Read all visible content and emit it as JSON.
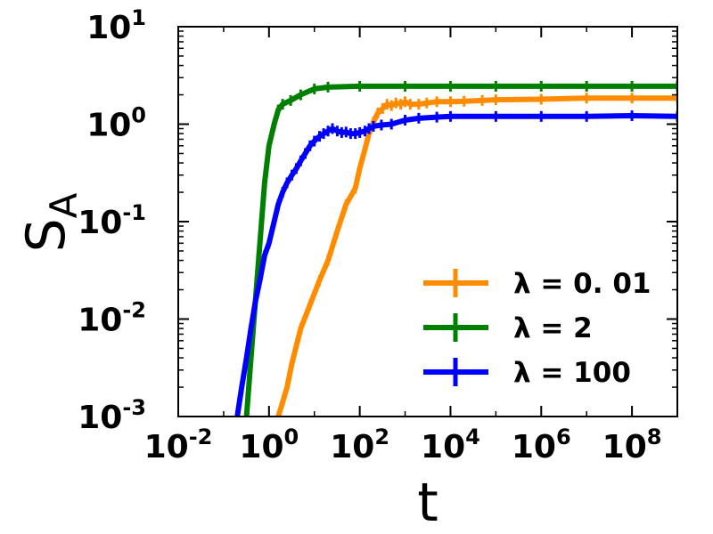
{
  "chart_data": {
    "type": "line",
    "xscale": "log",
    "yscale": "log",
    "xlim": [
      0.01,
      1000000000
    ],
    "ylim": [
      0.001,
      10
    ],
    "xlabel": "t",
    "ylabel": "S",
    "ylabel_subscript": "A",
    "legend_position": "lower right",
    "grid": false,
    "x_ticks": [
      {
        "value": 0.01,
        "base": "10",
        "exp": "-2"
      },
      {
        "value": 1,
        "base": "10",
        "exp": "0"
      },
      {
        "value": 100,
        "base": "10",
        "exp": "2"
      },
      {
        "value": 10000,
        "base": "10",
        "exp": "4"
      },
      {
        "value": 1000000,
        "base": "10",
        "exp": "6"
      },
      {
        "value": 100000000,
        "base": "10",
        "exp": "8"
      }
    ],
    "y_ticks": [
      {
        "value": 0.001,
        "base": "10",
        "exp": "-3"
      },
      {
        "value": 0.01,
        "base": "10",
        "exp": "-2"
      },
      {
        "value": 0.1,
        "base": "10",
        "exp": "-1"
      },
      {
        "value": 1,
        "base": "10",
        "exp": "0"
      },
      {
        "value": 10,
        "base": "10",
        "exp": "1"
      }
    ],
    "series": [
      {
        "name": "λ = 0. 01",
        "color": "#ff8c00",
        "x": [
          1.6,
          2.0,
          2.5,
          3.2,
          5,
          8,
          13,
          20,
          32,
          50,
          80,
          100,
          130,
          160,
          200,
          250,
          320,
          400,
          500,
          630,
          800,
          1000,
          1300,
          2000,
          3000,
          5000,
          10000,
          20000,
          50000,
          100000,
          1000000,
          10000000,
          100000000,
          1000000000
        ],
        "y": [
          0.001,
          0.0014,
          0.002,
          0.0035,
          0.008,
          0.014,
          0.025,
          0.04,
          0.08,
          0.15,
          0.22,
          0.35,
          0.55,
          0.8,
          1.05,
          1.3,
          1.45,
          1.6,
          1.55,
          1.65,
          1.6,
          1.7,
          1.6,
          1.6,
          1.65,
          1.7,
          1.7,
          1.72,
          1.75,
          1.78,
          1.8,
          1.85,
          1.85,
          1.85
        ]
      },
      {
        "name": "λ = 2",
        "color": "#008000",
        "x": [
          0.32,
          0.4,
          0.5,
          0.63,
          0.8,
          1.0,
          1.3,
          1.6,
          2.0,
          3.0,
          5.0,
          10,
          20,
          100,
          1000,
          10000,
          100000,
          1000000,
          10000000,
          100000000,
          1000000000
        ],
        "y": [
          0.001,
          0.004,
          0.015,
          0.06,
          0.25,
          0.6,
          1.0,
          1.4,
          1.6,
          1.75,
          2.0,
          2.3,
          2.4,
          2.45,
          2.45,
          2.45,
          2.45,
          2.45,
          2.45,
          2.45,
          2.45
        ]
      },
      {
        "name": "λ = 100",
        "color": "#0000ff",
        "x": [
          0.2,
          0.25,
          0.32,
          0.4,
          0.5,
          0.63,
          0.8,
          1.0,
          1.3,
          1.6,
          2.0,
          2.5,
          3.2,
          4,
          5,
          6.3,
          8,
          10,
          13,
          16,
          20,
          25,
          32,
          40,
          50,
          63,
          80,
          100,
          130,
          160,
          200,
          300,
          500,
          1000,
          2000,
          5000,
          10000,
          100000,
          1000000,
          10000000,
          100000000,
          1000000000
        ],
        "y": [
          0.001,
          0.002,
          0.004,
          0.008,
          0.015,
          0.025,
          0.045,
          0.06,
          0.1,
          0.15,
          0.2,
          0.25,
          0.3,
          0.35,
          0.42,
          0.5,
          0.6,
          0.67,
          0.75,
          0.8,
          0.85,
          0.9,
          0.85,
          0.82,
          0.83,
          0.8,
          0.8,
          0.82,
          0.85,
          0.9,
          0.95,
          0.98,
          1.0,
          1.1,
          1.15,
          1.18,
          1.2,
          1.2,
          1.2,
          1.2,
          1.22,
          1.2
        ]
      }
    ]
  }
}
